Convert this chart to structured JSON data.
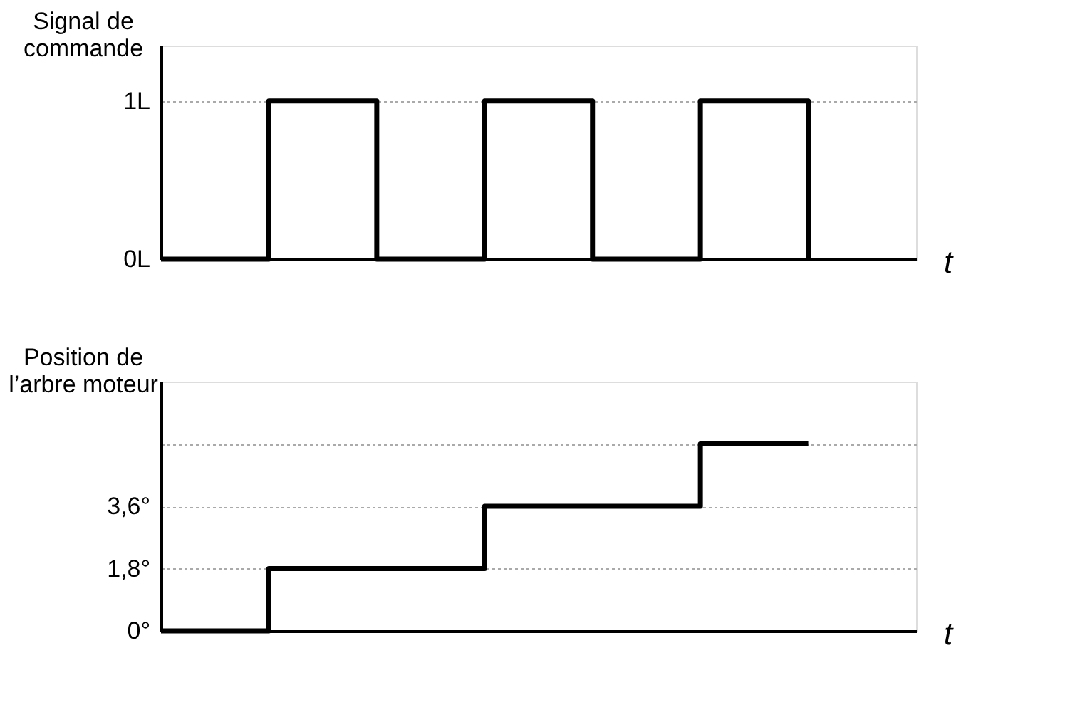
{
  "chart_data": [
    {
      "type": "step",
      "ylabel": "Signal de\ncommande",
      "xlabel": "t",
      "categories": [
        null,
        null,
        null,
        null,
        null,
        null,
        null
      ],
      "series": [
        {
          "color": "#000000",
          "values": [
            0,
            1,
            0,
            1,
            0,
            1,
            0
          ]
        }
      ],
      "ylim": [
        0,
        1.35
      ],
      "yticks": [
        {
          "value": 0,
          "label": "0L"
        },
        {
          "value": 1,
          "label": "1L"
        }
      ],
      "grid": "y",
      "tick_labels": "y",
      "legend": false
    },
    {
      "type": "step",
      "ylabel": "Position de\nl’arbre moteur",
      "xlabel": "t",
      "categories": [
        null,
        null,
        null,
        null,
        null,
        null,
        null
      ],
      "series": [
        {
          "color": "#000000",
          "values": [
            0,
            1.8,
            1.8,
            3.6,
            3.6,
            5.4,
            5.4
          ]
        }
      ],
      "ylim": [
        0,
        7.2
      ],
      "yticks": [
        {
          "value": 0,
          "label": "0°"
        },
        {
          "value": 1.8,
          "label": "1,8°"
        },
        {
          "value": 3.6,
          "label": "3,6°"
        },
        {
          "value": 5.4,
          "label": null
        }
      ],
      "grid": "y",
      "tick_labels": "y",
      "legend": false
    }
  ]
}
